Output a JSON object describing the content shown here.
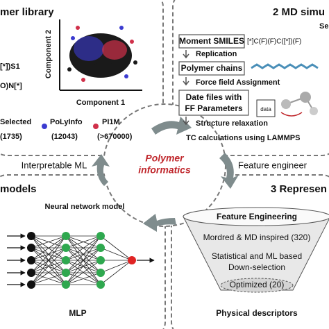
{
  "center": {
    "title_line1": "Polymer",
    "title_line2": "informatics",
    "left_label": "Interpretable ML",
    "right_label": "Feature engineer"
  },
  "library": {
    "heading": "mer library",
    "y_axis": "Component 2",
    "x_axis": "Component 1",
    "smiles_line1": "[*])S1",
    "smiles_line2": "O)N[*]",
    "legend": [
      {
        "name": "Selected",
        "count": "(1735)"
      },
      {
        "name": "PoLyInfo",
        "count": "(12043)"
      },
      {
        "name": "PI1M",
        "count": "(>670000)"
      }
    ]
  },
  "md": {
    "heading": "2 MD simu",
    "corner": "Se",
    "moment_smiles": "Moment SMILES",
    "smiles": "[*]C(F)(F)C([*])(F)",
    "replication": "Replication",
    "polymer_chains": "Polymer chains",
    "force_field": "Force field Assignment",
    "data_files_line1": "Date files with",
    "data_files_line2": "FF Parameters",
    "data_icon": "data",
    "relaxation": "Structure relaxation",
    "tc": "TC calculations using LAMMPS"
  },
  "models": {
    "heading": "models",
    "network_title": "Neural network model",
    "caption": "MLP"
  },
  "representation": {
    "heading": "3 Represen",
    "funnel_top": "Feature Engineering",
    "level1": "Mordred & MD inspired (320)",
    "level2_line1": "Statistical and ML based",
    "level2_line2": "Down-selection",
    "level3": "Optimized (20)",
    "caption": "Physical descriptors"
  }
}
